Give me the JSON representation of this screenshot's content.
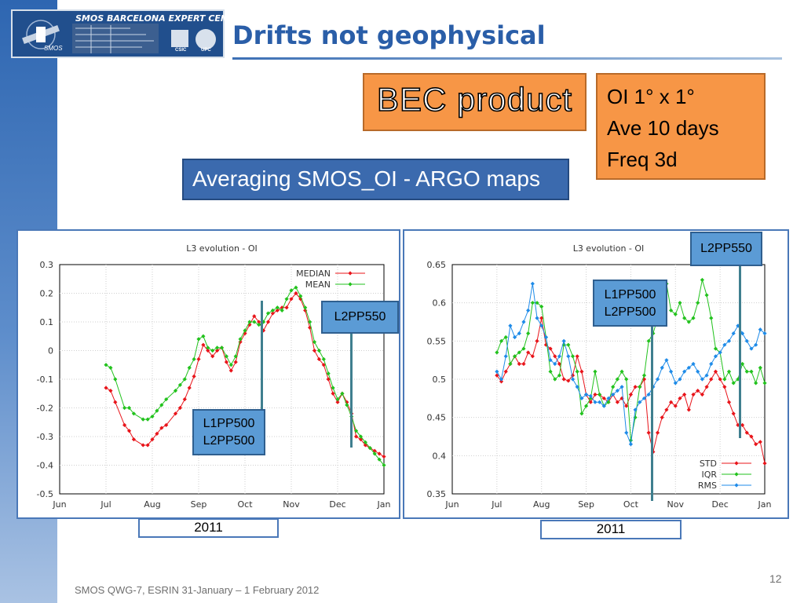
{
  "header": {
    "logo_text": "SMOS BARCELONA EXPERT CENTRE",
    "logo_sub": "SMOS",
    "logo_csic": "CSIC",
    "logo_upc": "UPC",
    "title": "Drifts not geophysical"
  },
  "bec_box": {
    "label": "BEC product"
  },
  "info_box": {
    "lines": [
      "OI 1° x 1°",
      "Ave 10 days",
      "Freq 3d"
    ]
  },
  "averaging_box": {
    "label": "Averaging SMOS_OI - ARGO maps"
  },
  "left_annotations": {
    "upper": "L2PP550",
    "lower_line1": "L1PP500",
    "lower_line2": "L2PP500"
  },
  "right_annotations": {
    "upper": "L2PP550",
    "mid_line1": "L1PP500",
    "mid_line2": "L2PP500"
  },
  "year_labels": {
    "left": "2011",
    "right": "2011"
  },
  "footer": {
    "text": "SMOS QWG-7, ESRIN 31-January – 1 February 2012",
    "page": "12"
  },
  "colors": {
    "red": "#e8141a",
    "green": "#22c21d",
    "blue": "#1e8be8"
  },
  "chart_data": [
    {
      "type": "line",
      "title": "L3 evolution - OI",
      "xlabel": "",
      "ylabel": "",
      "ylim": [
        -0.5,
        0.3
      ],
      "xlim": [
        0,
        7
      ],
      "x_ticks": [
        "Jun",
        "Jul",
        "Aug",
        "Sep",
        "Oct",
        "Nov",
        "Dec",
        "Jan"
      ],
      "y_ticks": [
        "-0.5",
        "-0.4",
        "-0.3",
        "-0.2",
        "-0.1",
        "0",
        "0.1",
        "0.2",
        "0.3"
      ],
      "grid": true,
      "legend": "top-right",
      "series": [
        {
          "name": "MEDIAN",
          "color": "#e8141a",
          "x": [
            1.0,
            1.1,
            1.2,
            1.4,
            1.5,
            1.6,
            1.8,
            1.9,
            2.0,
            2.1,
            2.2,
            2.3,
            2.5,
            2.6,
            2.7,
            2.8,
            2.9,
            3.0,
            3.1,
            3.2,
            3.3,
            3.4,
            3.5,
            3.6,
            3.7,
            3.8,
            3.9,
            4.0,
            4.1,
            4.2,
            4.3,
            4.4,
            4.5,
            4.6,
            4.7,
            4.8,
            4.9,
            5.0,
            5.1,
            5.2,
            5.3,
            5.4,
            5.5,
            5.6,
            5.7,
            5.8,
            5.9,
            6.0,
            6.1,
            6.2,
            6.3,
            6.4,
            6.5,
            6.6,
            6.7,
            6.8,
            6.9,
            7.0
          ],
          "values": [
            -0.13,
            -0.14,
            -0.18,
            -0.26,
            -0.28,
            -0.31,
            -0.33,
            -0.33,
            -0.31,
            -0.29,
            -0.27,
            -0.26,
            -0.22,
            -0.2,
            -0.17,
            -0.13,
            -0.09,
            -0.03,
            0.02,
            0.0,
            -0.02,
            0.0,
            0.01,
            -0.04,
            -0.07,
            -0.04,
            0.03,
            0.06,
            0.09,
            0.12,
            0.1,
            0.07,
            0.1,
            0.13,
            0.14,
            0.15,
            0.15,
            0.18,
            0.2,
            0.18,
            0.14,
            0.08,
            0.0,
            -0.03,
            -0.05,
            -0.1,
            -0.15,
            -0.18,
            -0.15,
            -0.18,
            -0.22,
            -0.3,
            -0.31,
            -0.33,
            -0.34,
            -0.35,
            -0.36,
            -0.37
          ]
        },
        {
          "name": "MEAN",
          "color": "#22c21d",
          "x": [
            1.0,
            1.1,
            1.2,
            1.4,
            1.5,
            1.6,
            1.8,
            1.9,
            2.0,
            2.1,
            2.2,
            2.3,
            2.5,
            2.6,
            2.7,
            2.8,
            2.9,
            3.0,
            3.1,
            3.2,
            3.3,
            3.4,
            3.5,
            3.6,
            3.7,
            3.8,
            3.9,
            4.0,
            4.1,
            4.2,
            4.3,
            4.4,
            4.5,
            4.6,
            4.7,
            4.8,
            4.9,
            5.0,
            5.1,
            5.2,
            5.3,
            5.4,
            5.5,
            5.6,
            5.7,
            5.8,
            5.9,
            6.0,
            6.1,
            6.2,
            6.3,
            6.4,
            6.5,
            6.6,
            6.7,
            6.8,
            6.9,
            7.0
          ],
          "values": [
            -0.05,
            -0.06,
            -0.1,
            -0.2,
            -0.2,
            -0.22,
            -0.24,
            -0.24,
            -0.23,
            -0.21,
            -0.19,
            -0.17,
            -0.14,
            -0.12,
            -0.1,
            -0.06,
            -0.03,
            0.04,
            0.05,
            0.01,
            0.0,
            0.01,
            0.01,
            -0.02,
            -0.05,
            -0.02,
            0.04,
            0.07,
            0.1,
            0.1,
            0.09,
            0.1,
            0.13,
            0.14,
            0.15,
            0.14,
            0.18,
            0.21,
            0.22,
            0.19,
            0.15,
            0.1,
            0.03,
            0.0,
            -0.03,
            -0.08,
            -0.13,
            -0.17,
            -0.15,
            -0.19,
            -0.23,
            -0.28,
            -0.3,
            -0.32,
            -0.34,
            -0.36,
            -0.38,
            -0.4
          ]
        }
      ]
    },
    {
      "type": "line",
      "title": "L3 evolution - OI",
      "xlabel": "",
      "ylabel": "",
      "ylim": [
        0.35,
        0.65
      ],
      "xlim": [
        0,
        7
      ],
      "x_ticks": [
        "Jun",
        "Jul",
        "Aug",
        "Sep",
        "Oct",
        "Nov",
        "Dec",
        "Jan"
      ],
      "y_ticks": [
        "0.35",
        "0.4",
        "0.45",
        "0.5",
        "0.55",
        "0.6",
        "0.65"
      ],
      "grid": true,
      "legend": "bottom-right",
      "series": [
        {
          "name": "STD",
          "color": "#e8141a",
          "x": [
            1.0,
            1.1,
            1.2,
            1.3,
            1.4,
            1.5,
            1.6,
            1.7,
            1.8,
            1.9,
            2.0,
            2.1,
            2.2,
            2.3,
            2.4,
            2.5,
            2.6,
            2.7,
            2.8,
            2.9,
            3.0,
            3.1,
            3.2,
            3.3,
            3.4,
            3.5,
            3.6,
            3.7,
            3.8,
            3.9,
            4.0,
            4.1,
            4.2,
            4.3,
            4.4,
            4.5,
            4.6,
            4.7,
            4.8,
            4.9,
            5.0,
            5.1,
            5.2,
            5.3,
            5.4,
            5.5,
            5.6,
            5.7,
            5.8,
            5.9,
            6.0,
            6.1,
            6.2,
            6.3,
            6.4,
            6.5,
            6.6,
            6.7,
            6.8,
            6.9,
            7.0
          ],
          "values": [
            0.505,
            0.497,
            0.51,
            0.52,
            0.53,
            0.52,
            0.52,
            0.535,
            0.53,
            0.55,
            0.58,
            0.545,
            0.54,
            0.53,
            0.52,
            0.5,
            0.498,
            0.505,
            0.53,
            0.51,
            0.48,
            0.47,
            0.48,
            0.48,
            0.475,
            0.47,
            0.48,
            0.47,
            0.475,
            0.465,
            0.48,
            0.49,
            0.49,
            0.5,
            0.43,
            0.405,
            0.43,
            0.45,
            0.46,
            0.47,
            0.465,
            0.475,
            0.48,
            0.46,
            0.48,
            0.485,
            0.48,
            0.49,
            0.5,
            0.51,
            0.5,
            0.49,
            0.47,
            0.455,
            0.44,
            0.44,
            0.43,
            0.425,
            0.415,
            0.418,
            0.39
          ]
        },
        {
          "name": "IQR",
          "color": "#22c21d",
          "x": [
            1.0,
            1.1,
            1.2,
            1.3,
            1.4,
            1.5,
            1.6,
            1.7,
            1.8,
            1.9,
            2.0,
            2.1,
            2.2,
            2.3,
            2.4,
            2.5,
            2.6,
            2.7,
            2.8,
            2.9,
            3.0,
            3.1,
            3.2,
            3.3,
            3.4,
            3.5,
            3.6,
            3.7,
            3.8,
            3.9,
            4.0,
            4.1,
            4.2,
            4.3,
            4.4,
            4.5,
            4.6,
            4.7,
            4.8,
            4.9,
            5.0,
            5.1,
            5.2,
            5.3,
            5.4,
            5.5,
            5.6,
            5.7,
            5.8,
            5.9,
            6.0,
            6.1,
            6.2,
            6.3,
            6.4,
            6.5,
            6.6,
            6.7,
            6.8,
            6.9,
            7.0
          ],
          "values": [
            0.535,
            0.55,
            0.555,
            0.52,
            0.53,
            0.535,
            0.54,
            0.56,
            0.6,
            0.6,
            0.595,
            0.555,
            0.51,
            0.5,
            0.505,
            0.545,
            0.545,
            0.53,
            0.51,
            0.455,
            0.465,
            0.475,
            0.51,
            0.48,
            0.465,
            0.47,
            0.49,
            0.5,
            0.51,
            0.5,
            0.42,
            0.45,
            0.49,
            0.505,
            0.55,
            0.56,
            0.58,
            0.595,
            0.625,
            0.59,
            0.585,
            0.6,
            0.58,
            0.575,
            0.58,
            0.6,
            0.63,
            0.61,
            0.58,
            0.54,
            0.535,
            0.5,
            0.51,
            0.495,
            0.5,
            0.52,
            0.51,
            0.51,
            0.495,
            0.515,
            0.495
          ]
        },
        {
          "name": "RMS",
          "color": "#1e8be8",
          "x": [
            1.0,
            1.1,
            1.2,
            1.3,
            1.4,
            1.5,
            1.6,
            1.7,
            1.8,
            1.9,
            2.0,
            2.1,
            2.2,
            2.3,
            2.4,
            2.5,
            2.6,
            2.7,
            2.8,
            2.9,
            3.0,
            3.1,
            3.2,
            3.3,
            3.4,
            3.5,
            3.6,
            3.7,
            3.8,
            3.9,
            4.0,
            4.1,
            4.2,
            4.3,
            4.4,
            4.5,
            4.6,
            4.7,
            4.8,
            4.9,
            5.0,
            5.1,
            5.2,
            5.3,
            5.4,
            5.5,
            5.6,
            5.7,
            5.8,
            5.9,
            6.0,
            6.1,
            6.2,
            6.3,
            6.4,
            6.5,
            6.6,
            6.7,
            6.8,
            6.9,
            7.0
          ],
          "values": [
            0.51,
            0.5,
            0.53,
            0.57,
            0.555,
            0.56,
            0.575,
            0.59,
            0.625,
            0.58,
            0.57,
            0.555,
            0.525,
            0.52,
            0.53,
            0.55,
            0.53,
            0.5,
            0.49,
            0.475,
            0.48,
            0.478,
            0.47,
            0.47,
            0.465,
            0.475,
            0.48,
            0.485,
            0.49,
            0.43,
            0.415,
            0.46,
            0.47,
            0.475,
            0.48,
            0.49,
            0.5,
            0.515,
            0.525,
            0.51,
            0.495,
            0.5,
            0.51,
            0.515,
            0.52,
            0.51,
            0.5,
            0.505,
            0.52,
            0.53,
            0.535,
            0.545,
            0.55,
            0.56,
            0.57,
            0.56,
            0.55,
            0.54,
            0.545,
            0.565,
            0.56
          ]
        }
      ]
    }
  ]
}
